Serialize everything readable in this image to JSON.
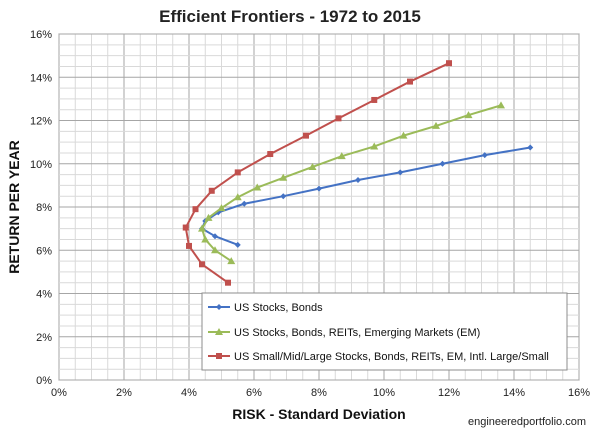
{
  "chart_data": {
    "type": "line",
    "title": "Efficient Frontiers - 1972 to 2015",
    "xlabel": "RISK - Standard Deviation",
    "ylabel": "RETURN PER YEAR",
    "xlim": [
      0,
      16
    ],
    "ylim": [
      0,
      16
    ],
    "x_ticks": [
      "0%",
      "2%",
      "4%",
      "6%",
      "8%",
      "10%",
      "12%",
      "14%",
      "16%"
    ],
    "y_ticks": [
      "0%",
      "2%",
      "4%",
      "6%",
      "8%",
      "10%",
      "12%",
      "14%",
      "16%"
    ],
    "grid": true,
    "legend_position": "bottom-center inside plot",
    "credit": "engineeredportfolio.com",
    "series": [
      {
        "name": "US Stocks, Bonds",
        "color": "#4472C4",
        "marker": "diamond",
        "points": [
          [
            5.5,
            6.25
          ],
          [
            4.8,
            6.65
          ],
          [
            4.4,
            7.0
          ],
          [
            4.5,
            7.35
          ],
          [
            4.9,
            7.75
          ],
          [
            5.7,
            8.15
          ],
          [
            6.9,
            8.5
          ],
          [
            8.0,
            8.85
          ],
          [
            9.2,
            9.25
          ],
          [
            10.5,
            9.6
          ],
          [
            11.8,
            10.0
          ],
          [
            13.1,
            10.4
          ],
          [
            14.5,
            10.75
          ]
        ]
      },
      {
        "name": "US Stocks, Bonds, REITs, Emerging Markets (EM)",
        "color": "#9BBB59",
        "marker": "triangle",
        "points": [
          [
            5.3,
            5.5
          ],
          [
            4.8,
            6.0
          ],
          [
            4.5,
            6.5
          ],
          [
            4.4,
            7.0
          ],
          [
            4.6,
            7.5
          ],
          [
            5.0,
            7.95
          ],
          [
            5.5,
            8.45
          ],
          [
            6.1,
            8.9
          ],
          [
            6.9,
            9.35
          ],
          [
            7.8,
            9.85
          ],
          [
            8.7,
            10.35
          ],
          [
            9.7,
            10.8
          ],
          [
            10.6,
            11.3
          ],
          [
            11.6,
            11.75
          ],
          [
            12.6,
            12.25
          ],
          [
            13.6,
            12.7
          ]
        ]
      },
      {
        "name": "US Small/Mid/Large Stocks, Bonds, REITs, EM, Intl. Large/Small",
        "color": "#C0504D",
        "marker": "square",
        "points": [
          [
            5.2,
            4.5
          ],
          [
            4.4,
            5.35
          ],
          [
            4.0,
            6.2
          ],
          [
            3.9,
            7.05
          ],
          [
            4.2,
            7.9
          ],
          [
            4.7,
            8.75
          ],
          [
            5.5,
            9.6
          ],
          [
            6.5,
            10.45
          ],
          [
            7.6,
            11.3
          ],
          [
            8.6,
            12.1
          ],
          [
            9.7,
            12.95
          ],
          [
            10.8,
            13.8
          ],
          [
            12.0,
            14.65
          ]
        ]
      }
    ]
  }
}
